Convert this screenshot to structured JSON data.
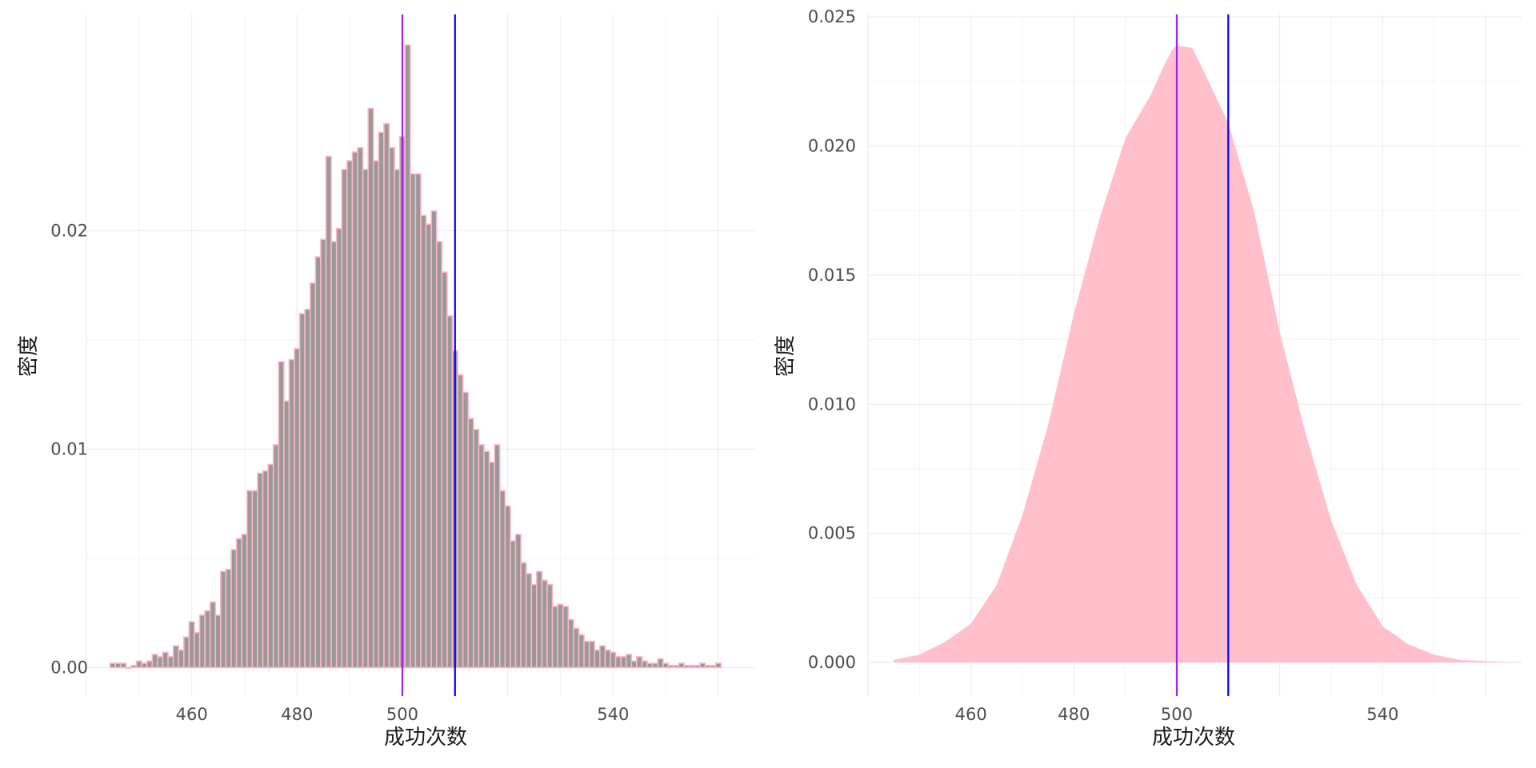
{
  "chart_data": [
    {
      "type": "histogram",
      "xlabel": "成功次数",
      "ylabel": "密度",
      "xlim": [
        440,
        567
      ],
      "ylim": [
        -0.0013,
        0.0299
      ],
      "xticks": [
        460,
        480,
        500,
        540
      ],
      "yticks": [
        0.0,
        0.01,
        0.02
      ],
      "ytick_labels": [
        "0.00",
        "0.01",
        "0.02"
      ],
      "grid": true,
      "bar_fill": "#999999",
      "bar_outline": "#ffb6c1",
      "bins": {
        "start": 444.5,
        "width": 1,
        "values": [
          0.0002,
          0.0002,
          0.0002,
          0,
          0.0001,
          0.0003,
          0.0002,
          0.0003,
          0.0006,
          0.0005,
          0.0007,
          0.0005,
          0.001,
          0.0008,
          0.0014,
          0.0021,
          0.0016,
          0.0024,
          0.0026,
          0.003,
          0.0024,
          0.0044,
          0.0045,
          0.0054,
          0.0059,
          0.0061,
          0.0081,
          0.0081,
          0.0089,
          0.009,
          0.0093,
          0.0102,
          0.014,
          0.0122,
          0.0141,
          0.0146,
          0.0162,
          0.0164,
          0.0176,
          0.0188,
          0.0196,
          0.0234,
          0.0195,
          0.0201,
          0.0228,
          0.0232,
          0.0236,
          0.0238,
          0.0228,
          0.0256,
          0.0232,
          0.0245,
          0.0249,
          0.0238,
          0.0228,
          0.0243,
          0.0285,
          0.0226,
          0.0226,
          0.0207,
          0.0203,
          0.0209,
          0.0195,
          0.0181,
          0.0161,
          0.0145,
          0.0134,
          0.0126,
          0.0114,
          0.0109,
          0.0102,
          0.0099,
          0.0094,
          0.0102,
          0.0081,
          0.0074,
          0.0058,
          0.0061,
          0.0048,
          0.0043,
          0.0038,
          0.0044,
          0.004,
          0.0038,
          0.0028,
          0.0029,
          0.0028,
          0.0022,
          0.0018,
          0.0015,
          0.0012,
          0.0012,
          0.0008,
          0.001,
          0.0008,
          0.0007,
          0.0005,
          0.0005,
          0.0006,
          0.0003,
          0.0005,
          0.0003,
          0.0002,
          0.0002,
          0.0004,
          0.0002,
          0.0001,
          0.0001,
          0.0002,
          0.0001,
          0.0001,
          0.0001,
          0.0002,
          0.0001,
          0.0001,
          0.0002
        ]
      },
      "vlines": [
        {
          "x": 500,
          "color": "#a020f0"
        },
        {
          "x": 510,
          "color": "#0000ff"
        }
      ]
    },
    {
      "type": "area",
      "xlabel": "成功次数",
      "ylabel": "密度",
      "xlim": [
        440,
        567
      ],
      "ylim": [
        -0.0013,
        0.0251
      ],
      "xticks": [
        460,
        480,
        500,
        540
      ],
      "yticks": [
        0.0,
        0.005,
        0.01,
        0.015,
        0.02,
        0.025
      ],
      "ytick_labels": [
        "0.000",
        "0.005",
        "0.010",
        "0.015",
        "0.020",
        "0.025"
      ],
      "grid": true,
      "fill": "#ffc0cb",
      "x": [
        445,
        450,
        455,
        460,
        465,
        470,
        475,
        480,
        485,
        490,
        495,
        497,
        499,
        500,
        503,
        505,
        510,
        515,
        520,
        525,
        530,
        535,
        540,
        545,
        550,
        555,
        560,
        566
      ],
      "y": [
        0.0001,
        0.0003,
        0.0008,
        0.0015,
        0.003,
        0.0057,
        0.0092,
        0.0135,
        0.0172,
        0.0203,
        0.022,
        0.0229,
        0.0237,
        0.0239,
        0.0238,
        0.023,
        0.0209,
        0.0175,
        0.0128,
        0.0089,
        0.0055,
        0.003,
        0.0014,
        0.0007,
        0.0003,
        0.0001,
        5e-05,
        0.0
      ],
      "vlines": [
        {
          "x": 500,
          "color": "#a020f0"
        },
        {
          "x": 510,
          "color": "#0000ff"
        }
      ]
    }
  ]
}
